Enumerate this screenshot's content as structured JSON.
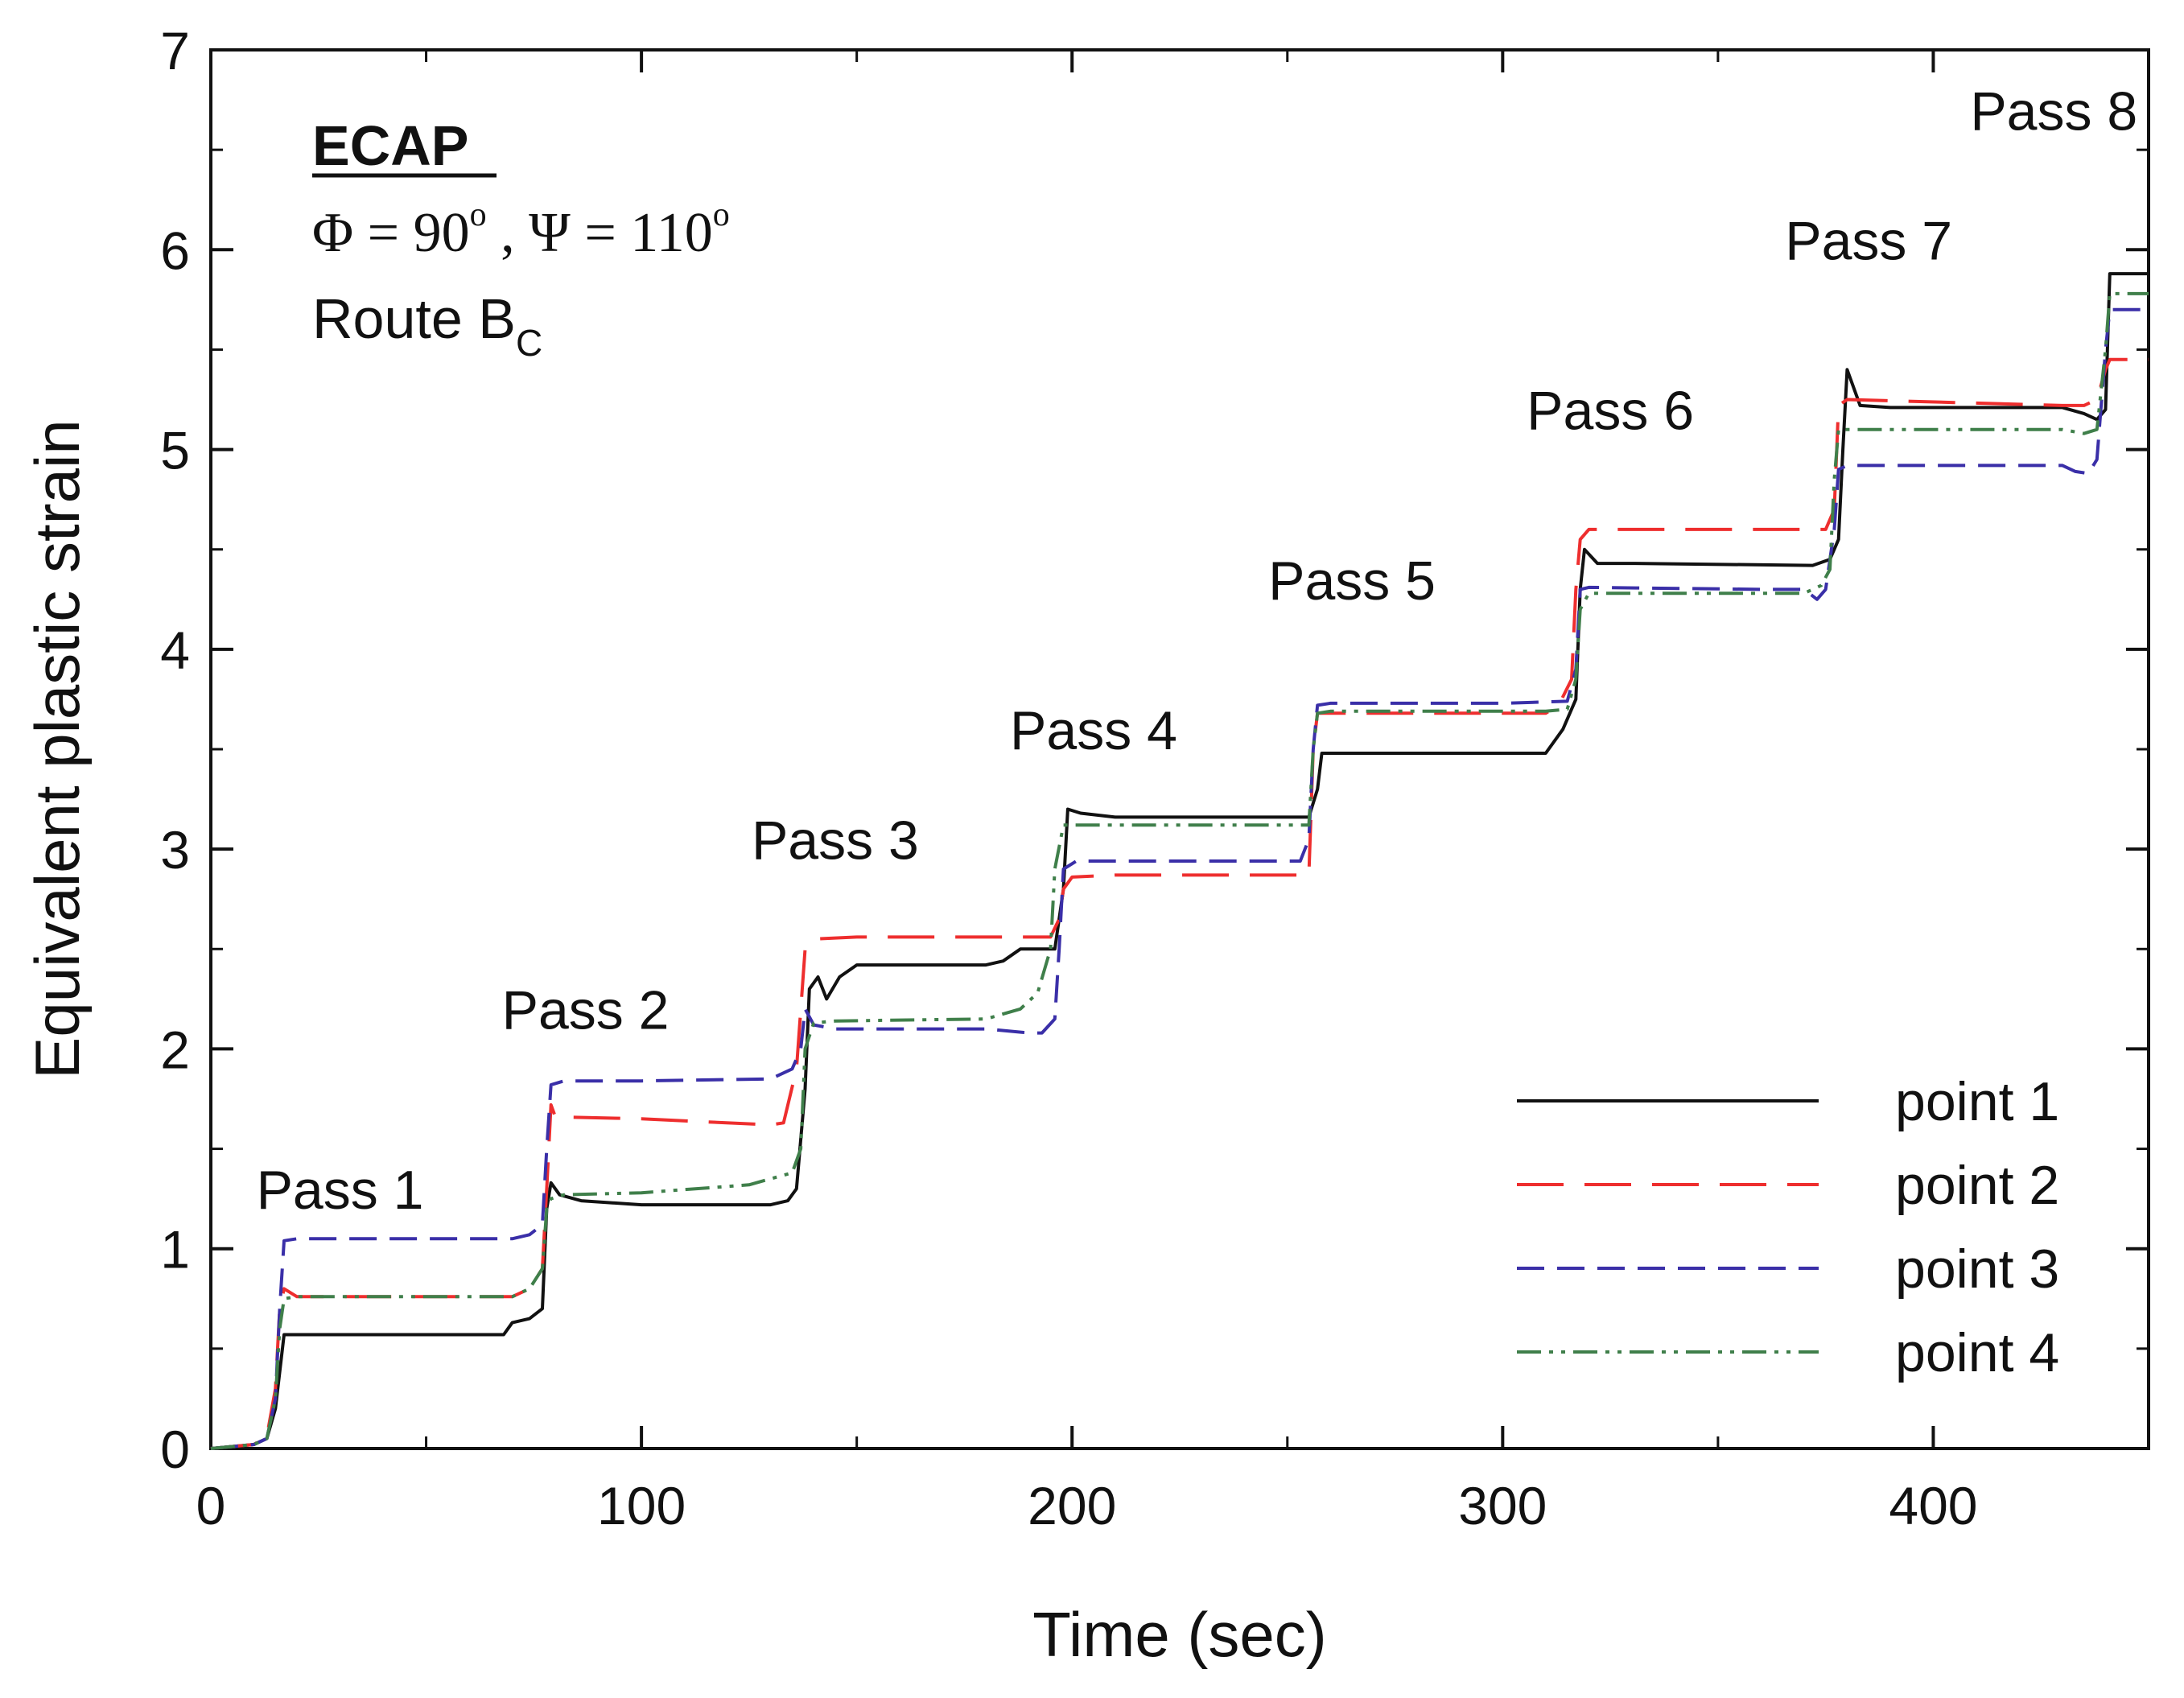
{
  "chart_data": {
    "type": "line",
    "title": "",
    "xlabel": "Time (sec)",
    "ylabel": "Equivalent plastic strain",
    "xlim": [
      0,
      450
    ],
    "ylim": [
      0,
      7
    ],
    "x_ticks": [
      "0",
      "100",
      "200",
      "300",
      "400"
    ],
    "y_ticks": [
      "0",
      "1",
      "2",
      "3",
      "4",
      "5",
      "6",
      "7"
    ],
    "grid": false,
    "legend_position": "bottom-right",
    "annotations": {
      "process": "ECAP",
      "angles": {
        "phi_symbol": "Φ",
        "phi_value": "90",
        "psi_symbol": "Ψ",
        "psi_value": "110",
        "degree_mark": "o",
        "equals": " = ",
        "separator": " , "
      },
      "route": {
        "prefix": "Route B",
        "subscript": "C"
      }
    },
    "pass_labels": [
      {
        "text": "Pass 1",
        "x": 30,
        "y": 1.2
      },
      {
        "text": "Pass 2",
        "x": 87,
        "y": 2.1
      },
      {
        "text": "Pass 3",
        "x": 145,
        "y": 2.95
      },
      {
        "text": "Pass 4",
        "x": 205,
        "y": 3.5
      },
      {
        "text": "Pass 5",
        "x": 265,
        "y": 4.25
      },
      {
        "text": "Pass 6",
        "x": 325,
        "y": 5.1
      },
      {
        "text": "Pass 7",
        "x": 385,
        "y": 5.95
      },
      {
        "text": "Pass 8",
        "x": 428,
        "y": 6.6
      }
    ],
    "series": [
      {
        "name": "point 1",
        "color": "#111111",
        "dash": "solid",
        "points": [
          [
            0,
            0
          ],
          [
            10,
            0.02
          ],
          [
            13,
            0.05
          ],
          [
            15,
            0.2
          ],
          [
            17,
            0.57
          ],
          [
            30,
            0.57
          ],
          [
            68,
            0.57
          ],
          [
            70,
            0.63
          ],
          [
            74,
            0.65
          ],
          [
            77,
            0.7
          ],
          [
            78,
            1.2
          ],
          [
            79,
            1.33
          ],
          [
            81,
            1.27
          ],
          [
            86,
            1.24
          ],
          [
            100,
            1.22
          ],
          [
            130,
            1.22
          ],
          [
            134,
            1.24
          ],
          [
            136,
            1.3
          ],
          [
            138,
            1.8
          ],
          [
            139,
            2.3
          ],
          [
            141,
            2.36
          ],
          [
            143,
            2.25
          ],
          [
            146,
            2.36
          ],
          [
            150,
            2.42
          ],
          [
            180,
            2.42
          ],
          [
            184,
            2.44
          ],
          [
            188,
            2.5
          ],
          [
            192,
            2.5
          ],
          [
            196,
            2.5
          ],
          [
            198,
            2.8
          ],
          [
            199,
            3.2
          ],
          [
            202,
            3.18
          ],
          [
            210,
            3.16
          ],
          [
            255,
            3.16
          ],
          [
            257,
            3.3
          ],
          [
            258,
            3.48
          ],
          [
            260,
            3.48
          ],
          [
            310,
            3.48
          ],
          [
            314,
            3.6
          ],
          [
            317,
            3.75
          ],
          [
            318,
            4.3
          ],
          [
            319,
            4.5
          ],
          [
            322,
            4.43
          ],
          [
            330,
            4.43
          ],
          [
            372,
            4.42
          ],
          [
            376,
            4.45
          ],
          [
            378,
            4.55
          ],
          [
            379,
            5.0
          ],
          [
            380,
            5.4
          ],
          [
            383,
            5.22
          ],
          [
            390,
            5.21
          ],
          [
            430,
            5.21
          ],
          [
            435,
            5.18
          ],
          [
            438,
            5.15
          ],
          [
            440,
            5.2
          ],
          [
            441,
            5.88
          ],
          [
            450,
            5.88
          ]
        ]
      },
      {
        "name": "point 2",
        "color": "#ee2e2e",
        "dash": "long-dash",
        "points": [
          [
            0,
            0
          ],
          [
            10,
            0.02
          ],
          [
            13,
            0.06
          ],
          [
            15,
            0.3
          ],
          [
            16,
            0.7
          ],
          [
            17,
            0.8
          ],
          [
            20,
            0.76
          ],
          [
            40,
            0.76
          ],
          [
            70,
            0.76
          ],
          [
            74,
            0.8
          ],
          [
            77,
            0.9
          ],
          [
            78,
            1.3
          ],
          [
            79,
            1.72
          ],
          [
            80,
            1.66
          ],
          [
            100,
            1.65
          ],
          [
            130,
            1.62
          ],
          [
            133,
            1.63
          ],
          [
            136,
            1.9
          ],
          [
            138,
            2.5
          ],
          [
            140,
            2.55
          ],
          [
            150,
            2.56
          ],
          [
            190,
            2.56
          ],
          [
            195,
            2.56
          ],
          [
            197,
            2.65
          ],
          [
            198,
            2.8
          ],
          [
            200,
            2.86
          ],
          [
            210,
            2.87
          ],
          [
            255,
            2.87
          ],
          [
            256,
            3.5
          ],
          [
            257,
            3.68
          ],
          [
            260,
            3.68
          ],
          [
            310,
            3.68
          ],
          [
            313,
            3.72
          ],
          [
            316,
            3.85
          ],
          [
            317,
            4.3
          ],
          [
            318,
            4.55
          ],
          [
            320,
            4.6
          ],
          [
            370,
            4.6
          ],
          [
            375,
            4.6
          ],
          [
            377,
            4.7
          ],
          [
            378,
            5.22
          ],
          [
            380,
            5.25
          ],
          [
            430,
            5.22
          ],
          [
            435,
            5.22
          ],
          [
            438,
            5.25
          ],
          [
            440,
            5.4
          ],
          [
            441,
            5.45
          ],
          [
            450,
            5.45
          ]
        ]
      },
      {
        "name": "point 3",
        "color": "#3a2fa8",
        "dash": "dash",
        "points": [
          [
            0,
            0
          ],
          [
            10,
            0.02
          ],
          [
            13,
            0.05
          ],
          [
            15,
            0.25
          ],
          [
            16,
            0.7
          ],
          [
            17,
            1.04
          ],
          [
            20,
            1.05
          ],
          [
            70,
            1.05
          ],
          [
            74,
            1.07
          ],
          [
            77,
            1.12
          ],
          [
            78,
            1.5
          ],
          [
            79,
            1.82
          ],
          [
            82,
            1.84
          ],
          [
            100,
            1.84
          ],
          [
            130,
            1.85
          ],
          [
            135,
            1.9
          ],
          [
            137,
            2.0
          ],
          [
            138,
            2.2
          ],
          [
            140,
            2.12
          ],
          [
            145,
            2.1
          ],
          [
            180,
            2.1
          ],
          [
            190,
            2.08
          ],
          [
            193,
            2.08
          ],
          [
            196,
            2.15
          ],
          [
            197,
            2.5
          ],
          [
            198,
            2.9
          ],
          [
            201,
            2.94
          ],
          [
            210,
            2.94
          ],
          [
            253,
            2.94
          ],
          [
            255,
            3.05
          ],
          [
            256,
            3.5
          ],
          [
            257,
            3.72
          ],
          [
            260,
            3.73
          ],
          [
            300,
            3.73
          ],
          [
            315,
            3.74
          ],
          [
            317,
            3.9
          ],
          [
            318,
            4.3
          ],
          [
            320,
            4.31
          ],
          [
            360,
            4.3
          ],
          [
            370,
            4.3
          ],
          [
            373,
            4.25
          ],
          [
            375,
            4.3
          ],
          [
            377,
            4.6
          ],
          [
            378,
            4.9
          ],
          [
            380,
            4.92
          ],
          [
            430,
            4.92
          ],
          [
            433,
            4.89
          ],
          [
            436,
            4.88
          ],
          [
            438,
            4.95
          ],
          [
            440,
            5.5
          ],
          [
            441,
            5.7
          ],
          [
            450,
            5.7
          ]
        ]
      },
      {
        "name": "point 4",
        "color": "#3f7f4a",
        "dash": "dash-dot-dot",
        "points": [
          [
            0,
            0
          ],
          [
            10,
            0.02
          ],
          [
            13,
            0.05
          ],
          [
            15,
            0.25
          ],
          [
            16,
            0.6
          ],
          [
            17,
            0.75
          ],
          [
            20,
            0.76
          ],
          [
            70,
            0.76
          ],
          [
            74,
            0.8
          ],
          [
            77,
            0.9
          ],
          [
            78,
            1.2
          ],
          [
            79,
            1.25
          ],
          [
            82,
            1.27
          ],
          [
            100,
            1.28
          ],
          [
            125,
            1.32
          ],
          [
            130,
            1.35
          ],
          [
            135,
            1.38
          ],
          [
            137,
            1.5
          ],
          [
            138,
            2.0
          ],
          [
            140,
            2.13
          ],
          [
            145,
            2.14
          ],
          [
            180,
            2.15
          ],
          [
            188,
            2.2
          ],
          [
            192,
            2.28
          ],
          [
            195,
            2.5
          ],
          [
            196,
            2.9
          ],
          [
            198,
            3.12
          ],
          [
            201,
            3.12
          ],
          [
            210,
            3.12
          ],
          [
            255,
            3.12
          ],
          [
            256,
            3.5
          ],
          [
            257,
            3.68
          ],
          [
            260,
            3.69
          ],
          [
            310,
            3.69
          ],
          [
            315,
            3.7
          ],
          [
            317,
            3.85
          ],
          [
            318,
            4.2
          ],
          [
            320,
            4.28
          ],
          [
            370,
            4.28
          ],
          [
            374,
            4.32
          ],
          [
            376,
            4.4
          ],
          [
            377,
            4.85
          ],
          [
            378,
            5.1
          ],
          [
            380,
            5.1
          ],
          [
            430,
            5.1
          ],
          [
            435,
            5.08
          ],
          [
            438,
            5.1
          ],
          [
            440,
            5.5
          ],
          [
            441,
            5.78
          ],
          [
            450,
            5.78
          ]
        ]
      }
    ]
  }
}
